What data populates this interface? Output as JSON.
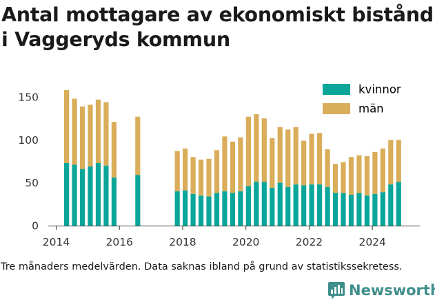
{
  "title_lines": [
    "Antal mottagare av ekonomiskt bistånd",
    "i Vaggeryds kommun"
  ],
  "caption": "Tre månaders medelvärden. Data saknas ibland på grund av statistikssekretess.",
  "brand": "Newsworthy",
  "colors": {
    "kvinnor": "#0aa69a",
    "man": "#d9ad59",
    "axis": "#333333",
    "brand": "#3e8f8c"
  },
  "chart_data": {
    "type": "bar",
    "stacked": true,
    "xlim": [
      2013.75,
      2025.5
    ],
    "ylim": [
      0,
      160
    ],
    "x_ticks": [
      2014,
      2016,
      2018,
      2020,
      2022,
      2024
    ],
    "x_tick_labels": [
      "2014",
      "2016",
      "2018",
      "2020",
      "2022",
      "2024"
    ],
    "y_ticks": [
      0,
      50,
      100,
      150
    ],
    "y_tick_labels": [
      "0",
      "50",
      "100",
      "150"
    ],
    "grid": false,
    "legend_position": "top-right",
    "series": [
      {
        "name": "kvinnor",
        "color": "#0aa69a"
      },
      {
        "name": "män",
        "color": "#d9ad59"
      }
    ],
    "points": [
      {
        "x": 2014.33,
        "kvinnor": 73,
        "total": 158
      },
      {
        "x": 2014.58,
        "kvinnor": 71,
        "total": 148
      },
      {
        "x": 2014.83,
        "kvinnor": 66,
        "total": 139
      },
      {
        "x": 2015.08,
        "kvinnor": 69,
        "total": 141
      },
      {
        "x": 2015.33,
        "kvinnor": 73,
        "total": 147
      },
      {
        "x": 2015.58,
        "kvinnor": 70,
        "total": 144
      },
      {
        "x": 2015.83,
        "kvinnor": 56,
        "total": 121
      },
      {
        "x": 2016.58,
        "kvinnor": 59,
        "total": 127
      },
      {
        "x": 2017.83,
        "kvinnor": 40,
        "total": 87
      },
      {
        "x": 2018.08,
        "kvinnor": 41,
        "total": 90
      },
      {
        "x": 2018.33,
        "kvinnor": 37,
        "total": 80
      },
      {
        "x": 2018.58,
        "kvinnor": 35,
        "total": 77
      },
      {
        "x": 2018.83,
        "kvinnor": 34,
        "total": 78
      },
      {
        "x": 2019.08,
        "kvinnor": 38,
        "total": 88
      },
      {
        "x": 2019.33,
        "kvinnor": 40,
        "total": 104
      },
      {
        "x": 2019.58,
        "kvinnor": 38,
        "total": 98
      },
      {
        "x": 2019.83,
        "kvinnor": 40,
        "total": 103
      },
      {
        "x": 2020.08,
        "kvinnor": 46,
        "total": 127
      },
      {
        "x": 2020.33,
        "kvinnor": 51,
        "total": 130
      },
      {
        "x": 2020.58,
        "kvinnor": 51,
        "total": 125
      },
      {
        "x": 2020.83,
        "kvinnor": 44,
        "total": 102
      },
      {
        "x": 2021.08,
        "kvinnor": 50,
        "total": 115
      },
      {
        "x": 2021.33,
        "kvinnor": 45,
        "total": 112
      },
      {
        "x": 2021.58,
        "kvinnor": 48,
        "total": 115
      },
      {
        "x": 2021.83,
        "kvinnor": 47,
        "total": 99
      },
      {
        "x": 2022.08,
        "kvinnor": 48,
        "total": 107
      },
      {
        "x": 2022.33,
        "kvinnor": 48,
        "total": 108
      },
      {
        "x": 2022.58,
        "kvinnor": 45,
        "total": 89
      },
      {
        "x": 2022.83,
        "kvinnor": 38,
        "total": 72
      },
      {
        "x": 2023.08,
        "kvinnor": 38,
        "total": 74
      },
      {
        "x": 2023.33,
        "kvinnor": 36,
        "total": 80
      },
      {
        "x": 2023.58,
        "kvinnor": 38,
        "total": 82
      },
      {
        "x": 2023.83,
        "kvinnor": 35,
        "total": 81
      },
      {
        "x": 2024.08,
        "kvinnor": 37,
        "total": 86
      },
      {
        "x": 2024.33,
        "kvinnor": 39,
        "total": 90
      },
      {
        "x": 2024.58,
        "kvinnor": 48,
        "total": 100
      },
      {
        "x": 2024.83,
        "kvinnor": 51,
        "total": 100
      }
    ]
  }
}
